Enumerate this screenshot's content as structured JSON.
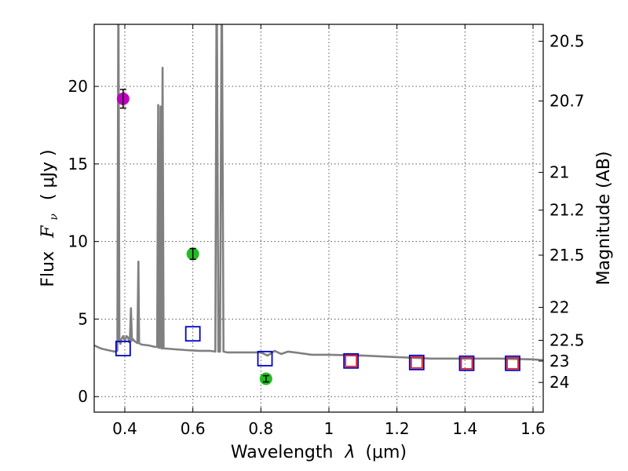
{
  "chart_data": {
    "type": "scatter",
    "xlabel_text": "Wavelength",
    "xlabel_symbol": "λ",
    "xlabel_unit": "(μm)",
    "ylabel_prefix": "Flux",
    "ylabel_symbol_base": "F",
    "ylabel_symbol_sub": "ν",
    "ylabel_unit": "( μJy )",
    "y2label": "Magnitude (AB)",
    "xlim": [
      0.31,
      1.63
    ],
    "ylim": [
      -1,
      24
    ],
    "grid": true,
    "x_ticks": [
      0.4,
      0.6,
      0.8,
      1.0,
      1.2,
      1.4,
      1.6
    ],
    "x_tick_labels": [
      "0.4",
      "0.6",
      "0.8",
      "1",
      "1.2",
      "1.4",
      "1.6"
    ],
    "y_ticks": [
      0,
      5,
      10,
      15,
      20
    ],
    "y_tick_labels": [
      "0",
      "5",
      "10",
      "15",
      "20"
    ],
    "y2_ticks": [
      {
        "mag": 20.5,
        "label": "20.5"
      },
      {
        "mag": 20.7,
        "label": "20.7"
      },
      {
        "mag": 21,
        "label": "21"
      },
      {
        "mag": 21.2,
        "label": "21.2"
      },
      {
        "mag": 21.5,
        "label": "21.5"
      },
      {
        "mag": 22,
        "label": "22"
      },
      {
        "mag": 22.5,
        "label": "22.5"
      },
      {
        "mag": 23,
        "label": "23"
      },
      {
        "mag": 24,
        "label": "24"
      }
    ],
    "series": [
      {
        "name": "model-spectrum",
        "kind": "line",
        "color": "#808080",
        "x": [
          0.31,
          0.33,
          0.35,
          0.37,
          0.378,
          0.381,
          0.384,
          0.387,
          0.39,
          0.395,
          0.4,
          0.405,
          0.41,
          0.413,
          0.415,
          0.418,
          0.421,
          0.424,
          0.43,
          0.437,
          0.44,
          0.442,
          0.445,
          0.45,
          0.47,
          0.49,
          0.495,
          0.498,
          0.5,
          0.502,
          0.505,
          0.508,
          0.511,
          0.514,
          0.52,
          0.55,
          0.58,
          0.62,
          0.65,
          0.666,
          0.67,
          0.675,
          0.68,
          0.685,
          0.69,
          0.7,
          0.75,
          0.8,
          0.82,
          0.84,
          0.86,
          0.88,
          0.9,
          0.95,
          1.0,
          1.1,
          1.2,
          1.3,
          1.4,
          1.5,
          1.6,
          1.63
        ],
        "y": [
          3.3,
          3.1,
          3.0,
          2.9,
          2.95,
          27,
          3.6,
          3.4,
          3.7,
          3.9,
          3.6,
          3.9,
          3.8,
          3.5,
          3.7,
          5.7,
          3.6,
          3.7,
          3.55,
          3.45,
          8.7,
          3.45,
          3.4,
          3.35,
          3.3,
          3.2,
          3.2,
          18.8,
          3.15,
          3.15,
          18.7,
          3.1,
          21.2,
          3.1,
          3.1,
          3.05,
          3.0,
          2.95,
          2.95,
          2.9,
          28,
          2.9,
          2.9,
          28,
          2.9,
          2.85,
          2.85,
          2.85,
          2.65,
          2.95,
          2.75,
          2.9,
          2.85,
          2.7,
          2.7,
          2.65,
          2.55,
          2.45,
          2.45,
          2.45,
          2.4,
          2.35
        ]
      },
      {
        "name": "photometry-magenta",
        "kind": "point",
        "color": "#c000c0",
        "x": [
          0.395
        ],
        "y": [
          19.2
        ],
        "yerr": [
          0.6
        ]
      },
      {
        "name": "photometry-green",
        "kind": "point",
        "color": "#22bb22",
        "x": [
          0.6,
          0.815
        ],
        "y": [
          9.2,
          1.15
        ],
        "yerr": [
          0.35,
          0.2
        ]
      },
      {
        "name": "model-blue-squares",
        "kind": "square",
        "color": "#0000cc",
        "x": [
          0.395,
          0.6,
          0.812,
          1.065,
          1.258,
          1.405,
          1.54
        ],
        "y": [
          3.1,
          4.05,
          2.45,
          2.3,
          2.2,
          2.15,
          2.15
        ]
      },
      {
        "name": "model-red-squares",
        "kind": "square",
        "color": "#dd2222",
        "x": [
          1.065,
          1.258,
          1.405,
          1.54
        ],
        "y": [
          2.3,
          2.2,
          2.15,
          2.15
        ]
      }
    ]
  }
}
